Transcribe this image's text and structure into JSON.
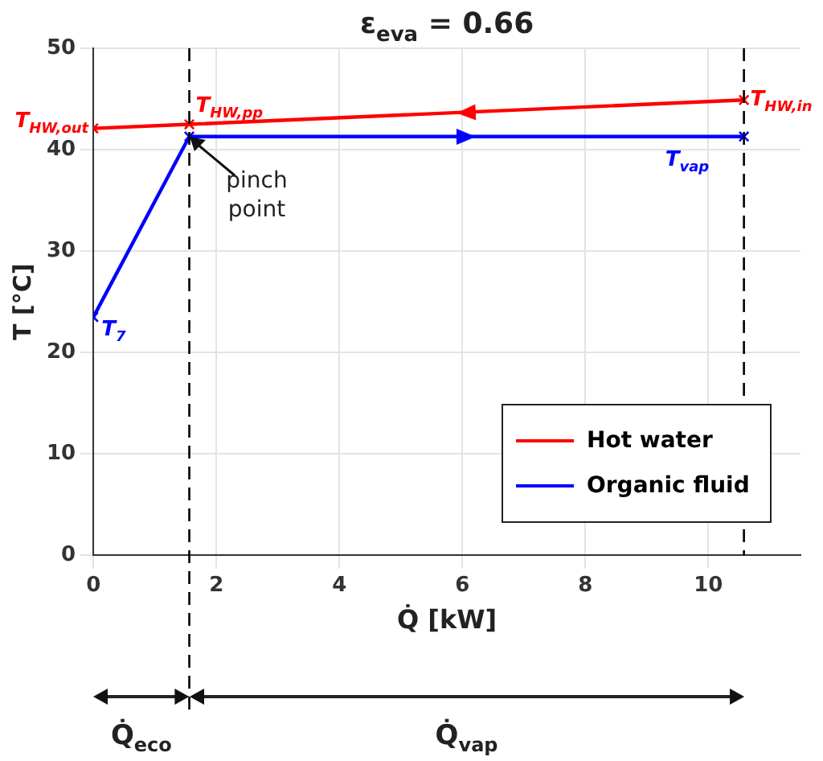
{
  "chart_data": {
    "type": "line",
    "title": "ε$_{eva}$ = 0.66",
    "xlabel": "Q̇ [kW]",
    "ylabel": "T [°C]",
    "series": [
      {
        "name": "Hot water",
        "color": "#ff0000",
        "x": [
          10.58,
          1.56,
          0
        ],
        "values": [
          44.9,
          42.5,
          42.1
        ]
      },
      {
        "name": "Organic fluid",
        "color": "#0000ff",
        "x": [
          0,
          1.56,
          10.58
        ],
        "values": [
          23.5,
          41.3,
          41.3
        ]
      }
    ],
    "xlim": [
      0,
      11.5
    ],
    "xticks": [
      0,
      2,
      4,
      6,
      8,
      10
    ],
    "ylim": [
      0,
      50
    ],
    "yticks": [
      0,
      10,
      20,
      30,
      40,
      50
    ],
    "grid": true,
    "legend": "bottom right",
    "marker": "cross",
    "line_style": "solid",
    "ref_lines": [
      {
        "axis": "x",
        "value": 1.56,
        "color": "#000000",
        "line_style": "dashed"
      },
      {
        "axis": "x",
        "value": 10.58,
        "color": "#000000",
        "line_style": "dashed"
      }
    ],
    "annotations": [
      {
        "text": "T$_{HW,out}$",
        "x": 0,
        "y": 42.1
      },
      {
        "text": "T$_{HW,pp}$",
        "x": 1.56,
        "y": 42.5
      },
      {
        "text": "T$_{HW,in}$",
        "x": 10.58,
        "y": 44.9
      },
      {
        "text": "T$_{vap}$",
        "x": 9.3,
        "y": 41.3
      },
      {
        "text": "T$_{7}$",
        "x": 0,
        "y": 23.5
      },
      {
        "text": "pinch point",
        "x": 1.56,
        "y": 41.3
      },
      "Q̇$_{eco}$",
      "Q̇$_{vap}$"
    ]
  }
}
